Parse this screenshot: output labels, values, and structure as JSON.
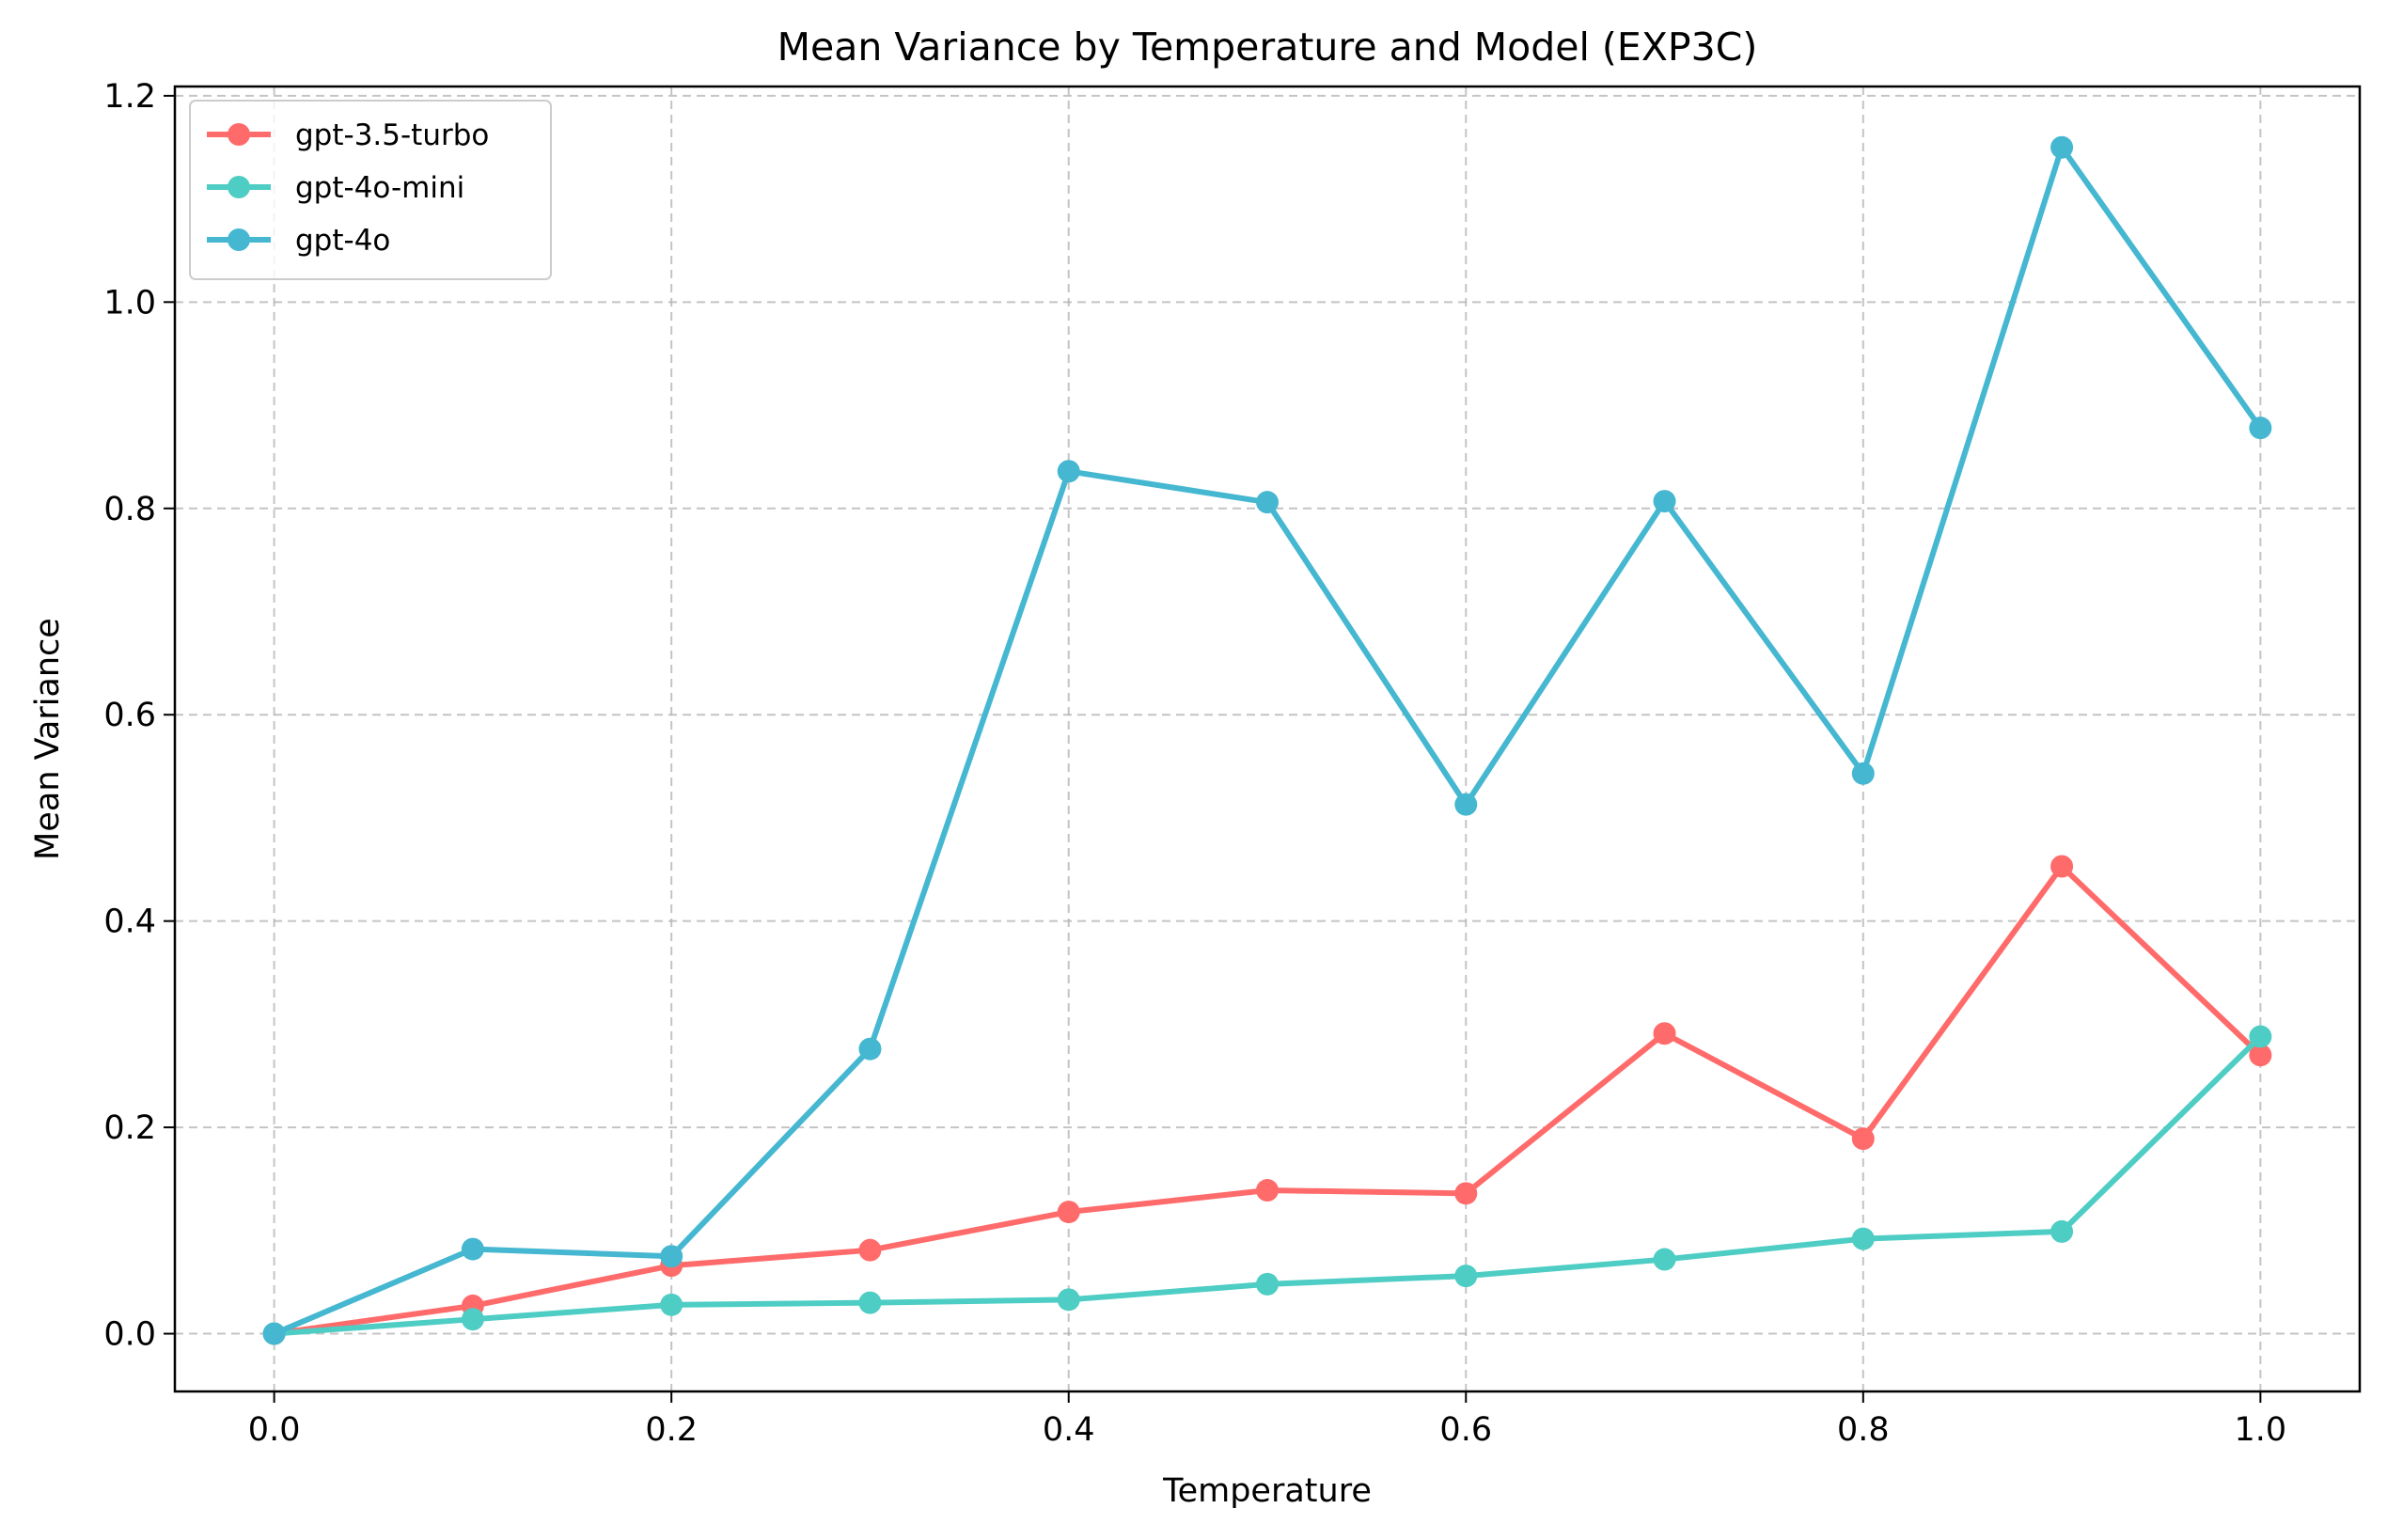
{
  "chart_data": {
    "type": "line",
    "title": "Mean Variance by Temperature and Model (EXP3C)",
    "xlabel": "Temperature",
    "ylabel": "Mean Variance",
    "x": [
      0.0,
      0.1,
      0.2,
      0.3,
      0.4,
      0.5,
      0.6,
      0.7,
      0.8,
      0.9,
      1.0
    ],
    "xlim": [
      -0.05,
      1.05
    ],
    "ylim": [
      -0.056,
      1.209
    ],
    "xticks": [
      0.0,
      0.2,
      0.4,
      0.6,
      0.8,
      1.0
    ],
    "xtick_labels": [
      "0.0",
      "0.2",
      "0.4",
      "0.6",
      "0.8",
      "1.0"
    ],
    "yticks": [
      0.0,
      0.2,
      0.4,
      0.6,
      0.8,
      1.0,
      1.2
    ],
    "ytick_labels": [
      "0.0",
      "0.2",
      "0.4",
      "0.6",
      "0.8",
      "1.0",
      "1.2"
    ],
    "grid": true,
    "legend_position": "top-left",
    "series": [
      {
        "name": "gpt-3.5-turbo",
        "color": "#ff6b6b",
        "values": [
          0.0,
          0.027,
          0.066,
          0.081,
          0.118,
          0.139,
          0.136,
          0.291,
          0.189,
          0.453,
          0.27
        ]
      },
      {
        "name": "gpt-4o-mini",
        "color": "#4ecdc4",
        "values": [
          0.0,
          0.014,
          0.028,
          0.03,
          0.033,
          0.048,
          0.056,
          0.072,
          0.092,
          0.099,
          0.288
        ]
      },
      {
        "name": "gpt-4o",
        "color": "#45b7d1",
        "values": [
          0.0,
          0.082,
          0.075,
          0.276,
          0.836,
          0.806,
          0.513,
          0.807,
          0.543,
          1.15,
          0.878
        ]
      }
    ]
  }
}
